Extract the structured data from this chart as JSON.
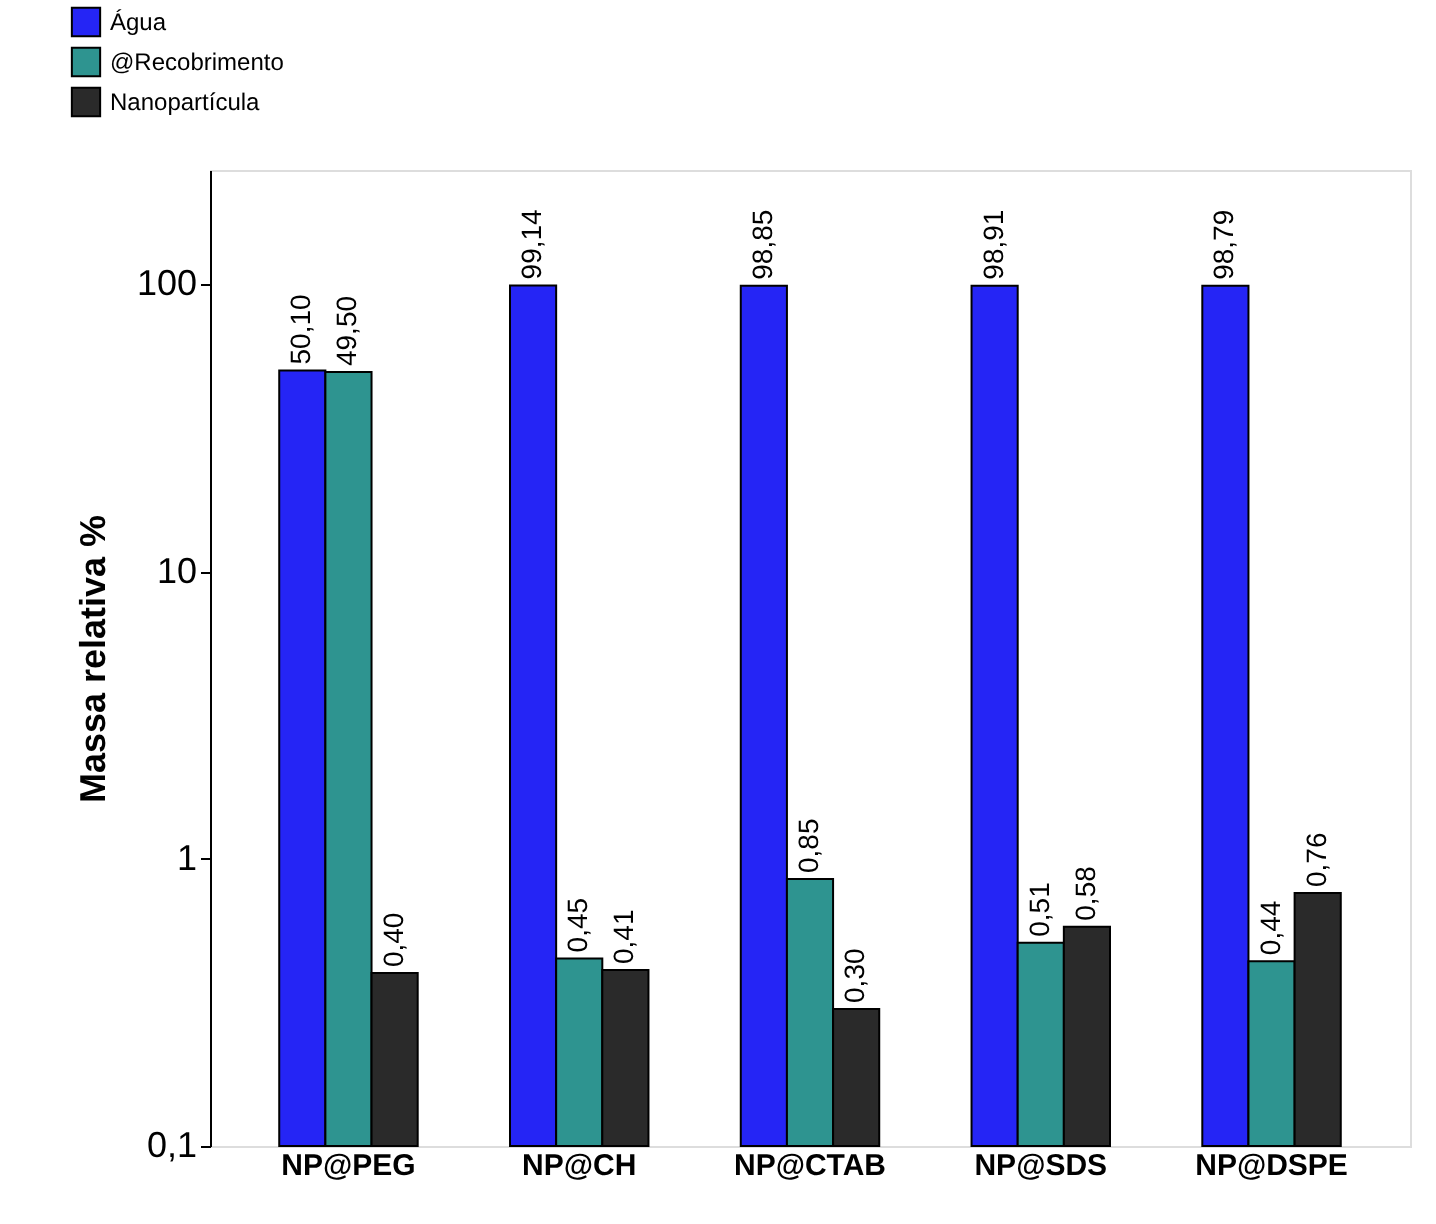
{
  "chart_data": {
    "type": "bar",
    "ylabel": "Massa relativa %",
    "categories": [
      "NP@PEG",
      "NP@CH",
      "NP@CTAB",
      "NP@SDS",
      "NP@DSPE"
    ],
    "series": [
      {
        "name": "Água",
        "color": "#2525f5",
        "values": [
          50.1,
          99.14,
          98.85,
          98.91,
          98.79
        ],
        "value_labels": [
          "50,10",
          "99,14",
          "98,85",
          "98,91",
          "98,79"
        ]
      },
      {
        "name": "@Recobrimento",
        "color": "#2e9490",
        "values": [
          49.5,
          0.45,
          0.85,
          0.51,
          0.44
        ],
        "value_labels": [
          "49,50",
          "0,45",
          "0,85",
          "0,51",
          "0,44"
        ]
      },
      {
        "name": "Nanopartícula",
        "color": "#2a2a2a",
        "values": [
          0.4,
          0.41,
          0.3,
          0.58,
          0.76
        ],
        "value_labels": [
          "0,40",
          "0,41",
          "0,30",
          "0,58",
          "0,76"
        ]
      }
    ],
    "log": true,
    "ylim": [
      0.1,
      250
    ],
    "yticks": [
      {
        "value": 0.1,
        "label": "0,1"
      },
      1,
      10,
      100
    ],
    "grid": false,
    "legend": "top left"
  }
}
